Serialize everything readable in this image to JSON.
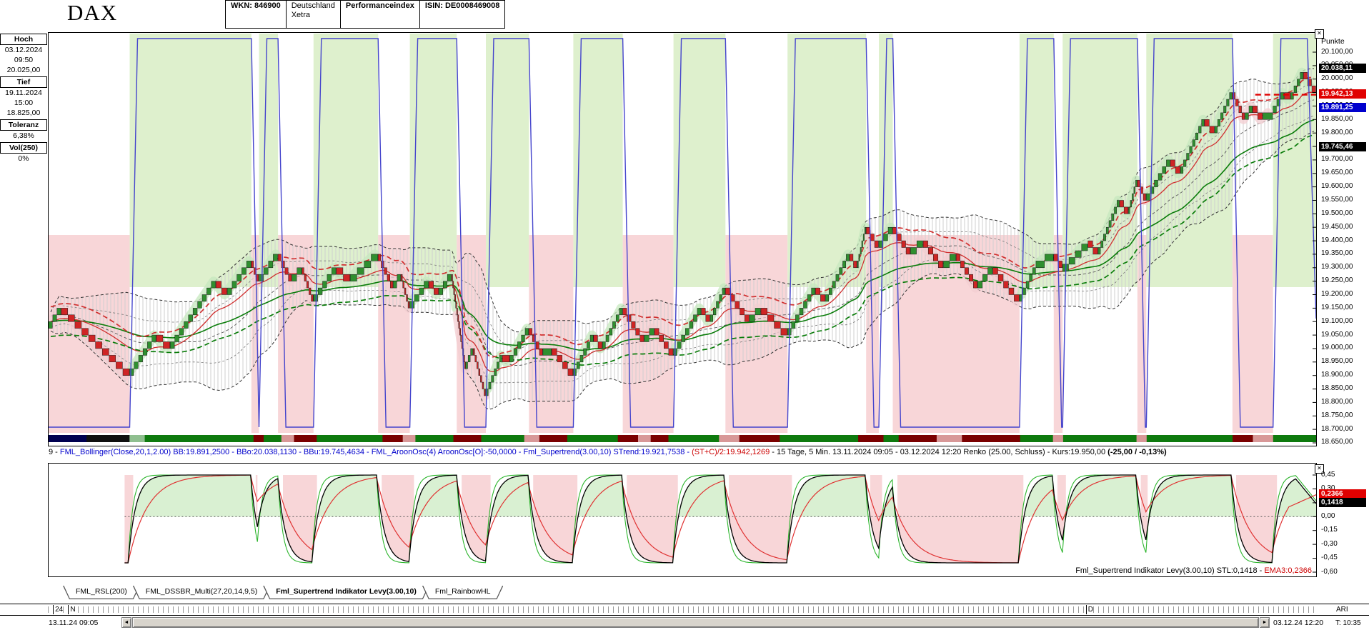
{
  "header": {
    "symbol": "DAX",
    "cells": [
      {
        "lines": [
          "WKN: 846900"
        ],
        "bold": true
      },
      {
        "lines": [
          "Deutschland",
          "Xetra"
        ],
        "bold": false
      },
      {
        "lines": [
          "Performanceindex"
        ],
        "bold": true
      },
      {
        "lines": [
          "ISIN: DE0008469008"
        ],
        "bold": true
      }
    ]
  },
  "sidebar": {
    "groups": [
      {
        "label": "Hoch",
        "lines": [
          "03.12.2024",
          "09:50",
          "20.025,00"
        ]
      },
      {
        "label": "Tief",
        "lines": [
          "19.11.2024",
          "15:00",
          "18.825,00"
        ]
      },
      {
        "label": "Toleranz",
        "lines": [
          "6,38%"
        ]
      },
      {
        "label": "Vol(250)",
        "lines": [
          "0%"
        ]
      }
    ]
  },
  "icons": {
    "close": "✕",
    "scroll_left": "◄",
    "scroll_right": "►"
  },
  "colors": {
    "up_fill": "#def0cd",
    "down_fill": "#f8d6d8",
    "up_glow": "#c5e8bd",
    "down_glow": "#f3cdd1",
    "brick_up": "#2f8f2f",
    "brick_down": "#cf2525",
    "aroon": "#4444cc",
    "ema_green": "#0b7d0b",
    "ema_red": "#d03030",
    "st_red": "#e00000",
    "ind_up_fill": "#d9f0d2",
    "ind_down_fill": "#f8d6d8",
    "ind_green": "#2db52d",
    "ind_red": "#e03333"
  },
  "status_line": [
    {
      "t": "9 - ",
      "c": "#000000"
    },
    {
      "t": "FML_Bollinger(Close,20,1,2.00) BB:19.891,2500 - BBo:20.038,1130 - BBu:19.745,4634 - FML_AroonOsc(4) AroonOsc[O]:-50,0000 - Fml_Supertrend(3.00,10) STrend:19.921,7538 - ",
      "c": "#0000cc"
    },
    {
      "t": "(ST+C)/2:19.942,1269",
      "c": "#cc0000"
    },
    {
      "t": " - 15 Tage, 5 Min. 13.11.2024 09:05 - 03.12.2024 12:20  Renko (25.00, Schluss) - Kurs:19.950,00 ",
      "c": "#000000"
    },
    {
      "t": "(-25,00 / -0,13%)",
      "c": "#000000",
      "b": true
    }
  ],
  "tabs": [
    {
      "label": "FML_RSL(200)",
      "active": false
    },
    {
      "label": "FML_DSSBR_Multi(27,20,14,9,5)",
      "active": false
    },
    {
      "label": "Fml_Supertrend Indikator Levy(3.00,10)",
      "active": true
    },
    {
      "label": "Fml_RainbowHL",
      "active": false
    }
  ],
  "timeline": {
    "labels": [
      {
        "t": "24",
        "f": 0.004
      },
      {
        "t": "N",
        "f": 0.016
      },
      {
        "t": "D",
        "f": 0.818
      }
    ],
    "right_text": "ARI"
  },
  "scrollbar": {
    "left_date": "13.11.24 09:05",
    "right_date": "03.12.24 12:20",
    "corner_text": "T: 10:35"
  },
  "chart_data": [
    {
      "name": "DAX Renko",
      "type": "line",
      "brick_size": 25,
      "price_axis": {
        "title": "Punkte",
        "max": 20100,
        "min": 18650,
        "step": 50,
        "labels": [
          "20.100,00",
          "20.050,00",
          "20.000,00",
          "19.950,00",
          "19.900,00",
          "19.850,00",
          "19.800,00",
          "19.750,00",
          "19.700,00",
          "19.650,00",
          "19.600,00",
          "19.550,00",
          "19.500,00",
          "19.450,00",
          "19.400,00",
          "19.350,00",
          "19.300,00",
          "19.250,00",
          "19.200,00",
          "19.150,00",
          "19.100,00",
          "19.050,00",
          "19.000,00",
          "18.950,00",
          "18.900,00",
          "18.850,00",
          "18.800,00",
          "18.750,00",
          "18.700,00",
          "18.650,00"
        ]
      },
      "price_labels": [
        {
          "text": "20.038,11",
          "value": 20038.11,
          "color": "#000000"
        },
        {
          "text": "19.942,13",
          "value": 19942.13,
          "color": "#e00000"
        },
        {
          "text": "19.891,25",
          "value": 19891.25,
          "color": "#0000cd"
        },
        {
          "text": "19.745,46",
          "value": 19745.46,
          "color": "#000000"
        }
      ],
      "readings": {
        "bb_mid": 19891.25,
        "bb_upper": 20038.113,
        "bb_lower": 19745.4634,
        "aroon_osc": -50.0,
        "supertrend": 19921.7538,
        "st_c_2": 19942.1269,
        "kurs": 19950.0,
        "change_abs": -25.0,
        "change_pct": -0.13,
        "period": "15 Tage, 5 Min.",
        "from": "13.11.2024 09:05",
        "to": "03.12.2024 12:20",
        "renko": "Renko (25.00, Schluss)"
      },
      "anchors": [
        [
          0.0,
          19075
        ],
        [
          0.01,
          19150
        ],
        [
          0.064,
          18900
        ],
        [
          0.085,
          19050
        ],
        [
          0.096,
          19000
        ],
        [
          0.132,
          19250
        ],
        [
          0.141,
          19200
        ],
        [
          0.16,
          19325
        ],
        [
          0.166,
          19250
        ],
        [
          0.181,
          19350
        ],
        [
          0.192,
          19250
        ],
        [
          0.2,
          19300
        ],
        [
          0.209,
          19175
        ],
        [
          0.227,
          19300
        ],
        [
          0.238,
          19250
        ],
        [
          0.26,
          19350
        ],
        [
          0.272,
          19225
        ],
        [
          0.278,
          19275
        ],
        [
          0.285,
          19150
        ],
        [
          0.3,
          19250
        ],
        [
          0.308,
          19200
        ],
        [
          0.318,
          19275
        ],
        [
          0.329,
          18925
        ],
        [
          0.335,
          19000
        ],
        [
          0.345,
          18825
        ],
        [
          0.358,
          18975
        ],
        [
          0.364,
          18950
        ],
        [
          0.379,
          19075
        ],
        [
          0.39,
          18975
        ],
        [
          0.397,
          19000
        ],
        [
          0.414,
          18900
        ],
        [
          0.43,
          19050
        ],
        [
          0.437,
          19000
        ],
        [
          0.453,
          19150
        ],
        [
          0.47,
          19025
        ],
        [
          0.478,
          19075
        ],
        [
          0.493,
          18975
        ],
        [
          0.515,
          19150
        ],
        [
          0.522,
          19100
        ],
        [
          0.534,
          19225
        ],
        [
          0.553,
          19100
        ],
        [
          0.562,
          19150
        ],
        [
          0.583,
          19050
        ],
        [
          0.605,
          19225
        ],
        [
          0.613,
          19175
        ],
        [
          0.632,
          19350
        ],
        [
          0.638,
          19300
        ],
        [
          0.645,
          19450
        ],
        [
          0.655,
          19375
        ],
        [
          0.666,
          19450
        ],
        [
          0.68,
          19350
        ],
        [
          0.69,
          19400
        ],
        [
          0.706,
          19300
        ],
        [
          0.716,
          19350
        ],
        [
          0.733,
          19225
        ],
        [
          0.745,
          19300
        ],
        [
          0.766,
          19175
        ],
        [
          0.779,
          19300
        ],
        [
          0.793,
          19350
        ],
        [
          0.8,
          19288
        ],
        [
          0.82,
          19400
        ],
        [
          0.828,
          19350
        ],
        [
          0.845,
          19550
        ],
        [
          0.852,
          19500
        ],
        [
          0.859,
          19625
        ],
        [
          0.866,
          19550
        ],
        [
          0.885,
          19700
        ],
        [
          0.893,
          19650
        ],
        [
          0.912,
          19850
        ],
        [
          0.92,
          19800
        ],
        [
          0.934,
          19950
        ],
        [
          0.944,
          19850
        ],
        [
          0.95,
          19900
        ],
        [
          0.958,
          19850
        ],
        [
          0.966,
          19875
        ],
        [
          0.975,
          19950
        ],
        [
          0.98,
          19925
        ],
        [
          0.99,
          20025
        ],
        [
          1.0,
          19950
        ]
      ],
      "trend_segments": [
        {
          "a": 0.0,
          "b": 0.064,
          "dir": "down"
        },
        {
          "a": 0.064,
          "b": 0.16,
          "dir": "up"
        },
        {
          "a": 0.16,
          "b": 0.166,
          "dir": "down"
        },
        {
          "a": 0.166,
          "b": 0.181,
          "dir": "up"
        },
        {
          "a": 0.181,
          "b": 0.209,
          "dir": "down"
        },
        {
          "a": 0.209,
          "b": 0.26,
          "dir": "up"
        },
        {
          "a": 0.26,
          "b": 0.285,
          "dir": "down"
        },
        {
          "a": 0.285,
          "b": 0.322,
          "dir": "up"
        },
        {
          "a": 0.322,
          "b": 0.345,
          "dir": "down"
        },
        {
          "a": 0.345,
          "b": 0.379,
          "dir": "up"
        },
        {
          "a": 0.379,
          "b": 0.414,
          "dir": "down"
        },
        {
          "a": 0.414,
          "b": 0.453,
          "dir": "up"
        },
        {
          "a": 0.453,
          "b": 0.493,
          "dir": "down"
        },
        {
          "a": 0.493,
          "b": 0.534,
          "dir": "up"
        },
        {
          "a": 0.534,
          "b": 0.583,
          "dir": "down"
        },
        {
          "a": 0.583,
          "b": 0.645,
          "dir": "up"
        },
        {
          "a": 0.645,
          "b": 0.655,
          "dir": "down"
        },
        {
          "a": 0.655,
          "b": 0.666,
          "dir": "up"
        },
        {
          "a": 0.666,
          "b": 0.766,
          "dir": "down"
        },
        {
          "a": 0.766,
          "b": 0.793,
          "dir": "up"
        },
        {
          "a": 0.793,
          "b": 0.8,
          "dir": "down"
        },
        {
          "a": 0.8,
          "b": 0.859,
          "dir": "up"
        },
        {
          "a": 0.859,
          "b": 0.866,
          "dir": "down"
        },
        {
          "a": 0.866,
          "b": 0.934,
          "dir": "up"
        },
        {
          "a": 0.934,
          "b": 0.966,
          "dir": "down"
        },
        {
          "a": 0.966,
          "b": 1.0,
          "dir": "up"
        }
      ],
      "ribbon": [
        {
          "w": 0.03,
          "c": "#000050"
        },
        {
          "w": 0.034,
          "c": "#101010"
        },
        {
          "w": 0.012,
          "c": "#8fbf8f"
        },
        {
          "w": 0.086,
          "c": "#0e7a0e"
        },
        {
          "w": 0.008,
          "c": "#7a0000"
        },
        {
          "w": 0.014,
          "c": "#0e7a0e"
        },
        {
          "w": 0.01,
          "c": "#d89898"
        },
        {
          "w": 0.018,
          "c": "#7a0000"
        },
        {
          "w": 0.052,
          "c": "#0e7a0e"
        },
        {
          "w": 0.016,
          "c": "#7a0000"
        },
        {
          "w": 0.01,
          "c": "#d89898"
        },
        {
          "w": 0.03,
          "c": "#0e7a0e"
        },
        {
          "w": 0.022,
          "c": "#7a0000"
        },
        {
          "w": 0.034,
          "c": "#0e7a0e"
        },
        {
          "w": 0.012,
          "c": "#d89898"
        },
        {
          "w": 0.022,
          "c": "#7a0000"
        },
        {
          "w": 0.04,
          "c": "#0e7a0e"
        },
        {
          "w": 0.016,
          "c": "#7a0000"
        },
        {
          "w": 0.01,
          "c": "#d89898"
        },
        {
          "w": 0.014,
          "c": "#7a0000"
        },
        {
          "w": 0.04,
          "c": "#0e7a0e"
        },
        {
          "w": 0.016,
          "c": "#d89898"
        },
        {
          "w": 0.032,
          "c": "#7a0000"
        },
        {
          "w": 0.062,
          "c": "#0e7a0e"
        },
        {
          "w": 0.02,
          "c": "#7a0000"
        },
        {
          "w": 0.012,
          "c": "#0e7a0e"
        },
        {
          "w": 0.03,
          "c": "#7a0000"
        },
        {
          "w": 0.02,
          "c": "#d89898"
        },
        {
          "w": 0.046,
          "c": "#7a0000"
        },
        {
          "w": 0.026,
          "c": "#0e7a0e"
        },
        {
          "w": 0.008,
          "c": "#d89898"
        },
        {
          "w": 0.058,
          "c": "#0e7a0e"
        },
        {
          "w": 0.008,
          "c": "#d89898"
        },
        {
          "w": 0.068,
          "c": "#0e7a0e"
        },
        {
          "w": 0.016,
          "c": "#7a0000"
        },
        {
          "w": 0.016,
          "c": "#d89898"
        },
        {
          "w": 0.034,
          "c": "#0e7a0e"
        }
      ]
    },
    {
      "name": "Fml_Supertrend Indikator Levy(3.00,10)",
      "type": "line",
      "ylim": [
        -0.6,
        0.45
      ],
      "yticks": [
        {
          "t": "0,45",
          "v": 0.45
        },
        {
          "t": "0,30",
          "v": 0.3
        },
        {
          "t": "0,15",
          "v": 0.15
        },
        {
          "t": "0,00",
          "v": 0.0
        },
        {
          "t": "-0,15",
          "v": -0.15
        },
        {
          "t": "-0,30",
          "v": -0.3
        },
        {
          "t": "-0,45",
          "v": -0.45
        },
        {
          "t": "-0,60",
          "v": -0.6
        }
      ],
      "value_labels": [
        {
          "text": "0,2366",
          "value": 0.2366,
          "color": "#e00000"
        },
        {
          "text": "0,1418",
          "value": 0.1418,
          "color": "#000000"
        }
      ],
      "stl": 0.1418,
      "ema3": 0.2366,
      "start": 0.06,
      "extra_segments": [
        {
          "a": 0.988,
          "b": 1.0,
          "dir": "down"
        }
      ],
      "label_segments": [
        {
          "t": "Fml_Supertrend Indikator Levy(3.00,10) STL:0,1418 - ",
          "c": "#000000"
        },
        {
          "t": "EMA3:0,2366",
          "c": "#cc0000"
        }
      ]
    }
  ]
}
